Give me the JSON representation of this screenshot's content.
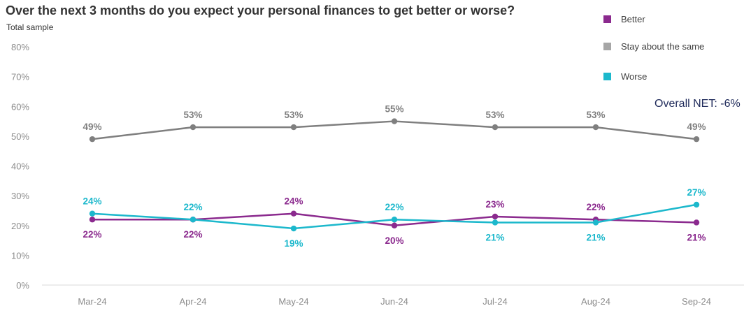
{
  "chart_data": {
    "type": "line",
    "title": "Over the next 3 months do you expect your personal finances to get better or worse?",
    "subtitle": "Total sample",
    "categories": [
      "Mar-24",
      "Apr-24",
      "May-24",
      "Jun-24",
      "Jul-24",
      "Aug-24",
      "Sep-24"
    ],
    "y_ticks": [
      "0%",
      "10%",
      "20%",
      "30%",
      "40%",
      "50%",
      "60%",
      "70%",
      "80%"
    ],
    "ylim": [
      0,
      80
    ],
    "grid": false,
    "legend_position": "top-right",
    "series": [
      {
        "name": "Better",
        "color": "#8b2a8e",
        "values": [
          22,
          22,
          24,
          20,
          23,
          22,
          21
        ],
        "labels": [
          "22%",
          "22%",
          "24%",
          "20%",
          "23%",
          "22%",
          "21%"
        ]
      },
      {
        "name": "Stay about the same",
        "color": "#808080",
        "values": [
          49,
          53,
          53,
          55,
          53,
          53,
          49
        ],
        "labels": [
          "49%",
          "53%",
          "53%",
          "55%",
          "53%",
          "53%",
          "49%"
        ]
      },
      {
        "name": "Worse",
        "color": "#1cb8cc",
        "values": [
          24,
          22,
          19,
          22,
          21,
          21,
          27
        ],
        "labels": [
          "24%",
          "22%",
          "19%",
          "22%",
          "21%",
          "21%",
          "27%"
        ]
      }
    ],
    "annotation": "Overall NET: -6%"
  }
}
